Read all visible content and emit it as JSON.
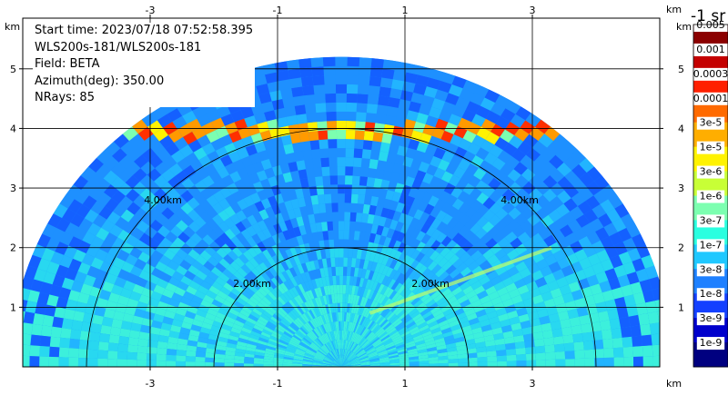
{
  "chart_data": {
    "type": "heatmap",
    "subtype": "polar-rhi-scan",
    "info_lines": [
      "Start time: 2023/07/18 07:52:58.395",
      "WLS200s-181/WLS200s-181",
      "Field: BETA",
      "Azimuth(deg): 350.00",
      "NRays: 85"
    ],
    "x_unit": "km",
    "y_unit": "km",
    "x_ticks": [
      "-3",
      "-1",
      "1",
      "3"
    ],
    "y_ticks": [
      "1",
      "2",
      "3",
      "4",
      "5"
    ],
    "xlim": [
      -5.0,
      5.0
    ],
    "ylim": [
      0.0,
      5.85
    ],
    "range_rings": [
      {
        "radius": 2.0,
        "label": "2.00km"
      },
      {
        "radius": 4.0,
        "label": "4.00km"
      }
    ],
    "grid": true,
    "colorbar": {
      "title": "-1 sr",
      "labels": [
        "0.005",
        "0.001",
        "0.0003",
        "0.0001",
        "3e-5",
        "1e-5",
        "3e-6",
        "1e-6",
        "3e-7",
        "1e-7",
        "3e-8",
        "1e-8",
        "3e-9",
        "1e-9"
      ],
      "colors": [
        "#8b0000",
        "#c40000",
        "#ff2000",
        "#ff6a00",
        "#ffae00",
        "#fff200",
        "#c8ff36",
        "#7cffb0",
        "#2affe0",
        "#20c8ff",
        "#1e80ff",
        "#1440ff",
        "#0000cc",
        "#000080"
      ]
    },
    "scan": {
      "max_range_km": 5.2,
      "elevation_deg": [
        0,
        180
      ],
      "nrays": 85,
      "background_color": "#1e90ff",
      "features": [
        {
          "name": "cloud-layer",
          "height_km": 3.95,
          "color": "#ff7a00"
        },
        {
          "name": "boundary-layer",
          "height_km": 1.3,
          "color": "#2affe0"
        }
      ]
    }
  }
}
